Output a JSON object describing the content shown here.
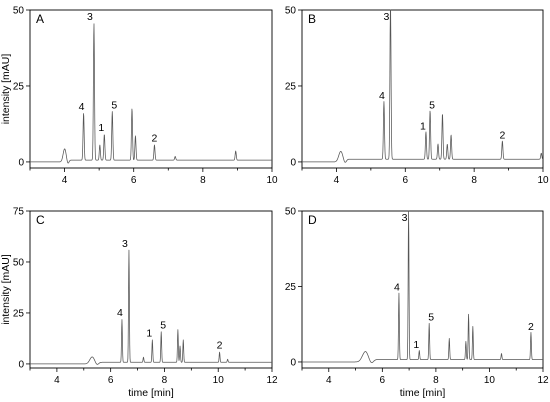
{
  "chart_data": [
    {
      "type": "line",
      "panel_label": "A",
      "xlabel": "",
      "ylabel": "intensity [mAU]",
      "xlim": [
        3,
        10
      ],
      "ylim": [
        -2,
        50
      ],
      "xticks": [
        "4",
        "6",
        "8",
        "10"
      ],
      "yticks": [
        "0",
        "25",
        "50"
      ],
      "peaks": [
        {
          "t": 4.55,
          "h": 15.5,
          "label": "4"
        },
        {
          "t": 4.85,
          "h": 45,
          "label": "3"
        },
        {
          "t": 5.02,
          "h": 5,
          "label": ""
        },
        {
          "t": 5.15,
          "h": 8.5,
          "label": "1"
        },
        {
          "t": 5.38,
          "h": 16,
          "label": "5"
        },
        {
          "t": 5.95,
          "h": 17,
          "label": ""
        },
        {
          "t": 6.05,
          "h": 8,
          "label": ""
        },
        {
          "t": 6.6,
          "h": 5,
          "label": "2"
        },
        {
          "t": 7.2,
          "h": 1.2,
          "label": ""
        },
        {
          "t": 8.95,
          "h": 3,
          "label": ""
        }
      ],
      "solvent_front": {
        "t": 4.0,
        "h": 4,
        "w": 0.06
      },
      "baseline": 0.6
    },
    {
      "type": "line",
      "panel_label": "B",
      "xlabel": "",
      "ylabel": "",
      "xlim": [
        3,
        10
      ],
      "ylim": [
        -2,
        50
      ],
      "xticks": [
        "4",
        "6",
        "8",
        "10"
      ],
      "yticks": [
        "0",
        "25",
        "50"
      ],
      "peaks": [
        {
          "t": 5.38,
          "h": 19,
          "label": "4"
        },
        {
          "t": 5.57,
          "h": 53,
          "label": "3"
        },
        {
          "t": 6.6,
          "h": 9,
          "label": "1"
        },
        {
          "t": 6.72,
          "h": 16,
          "label": "5"
        },
        {
          "t": 6.95,
          "h": 5,
          "label": ""
        },
        {
          "t": 7.08,
          "h": 15,
          "label": ""
        },
        {
          "t": 7.22,
          "h": 5,
          "label": ""
        },
        {
          "t": 7.33,
          "h": 8,
          "label": ""
        },
        {
          "t": 8.82,
          "h": 6,
          "label": "2"
        },
        {
          "t": 9.95,
          "h": 2,
          "label": ""
        }
      ],
      "solvent_front": {
        "t": 4.12,
        "h": 3,
        "w": 0.08
      },
      "baseline": 0.9
    },
    {
      "type": "line",
      "panel_label": "C",
      "xlabel": "time [min]",
      "ylabel": "intensity [mAU]",
      "xlim": [
        3,
        12
      ],
      "ylim": [
        -2,
        75
      ],
      "xticks": [
        "4",
        "6",
        "8",
        "10",
        "12"
      ],
      "yticks": [
        "0",
        "25",
        "50",
        "75"
      ],
      "peaks": [
        {
          "t": 6.42,
          "h": 21,
          "label": "4"
        },
        {
          "t": 6.68,
          "h": 55,
          "label": "3"
        },
        {
          "t": 7.22,
          "h": 2.5,
          "label": ""
        },
        {
          "t": 7.55,
          "h": 11,
          "label": "1"
        },
        {
          "t": 7.88,
          "h": 15,
          "label": "5"
        },
        {
          "t": 8.5,
          "h": 16,
          "label": ""
        },
        {
          "t": 8.58,
          "h": 8,
          "label": ""
        },
        {
          "t": 8.7,
          "h": 11,
          "label": ""
        },
        {
          "t": 10.05,
          "h": 5,
          "label": "2"
        },
        {
          "t": 10.35,
          "h": 1.5,
          "label": ""
        }
      ],
      "solvent_front": {
        "t": 5.3,
        "h": 3,
        "w": 0.12
      },
      "baseline": 0.8
    },
    {
      "type": "line",
      "panel_label": "D",
      "xlabel": "time [min]",
      "ylabel": "",
      "xlim": [
        3,
        12
      ],
      "ylim": [
        -2,
        50
      ],
      "xticks": [
        "4",
        "6",
        "8",
        "10",
        "12"
      ],
      "yticks": [
        "0",
        "25",
        "50"
      ],
      "peaks": [
        {
          "t": 6.62,
          "h": 22,
          "label": "4"
        },
        {
          "t": 6.98,
          "h": 50,
          "label": "3"
        },
        {
          "t": 7.38,
          "h": 3,
          "label": "1"
        },
        {
          "t": 7.75,
          "h": 12,
          "label": "5"
        },
        {
          "t": 8.5,
          "h": 7,
          "label": ""
        },
        {
          "t": 9.12,
          "h": 6,
          "label": ""
        },
        {
          "t": 9.22,
          "h": 15,
          "label": ""
        },
        {
          "t": 9.38,
          "h": 11,
          "label": ""
        },
        {
          "t": 10.45,
          "h": 2,
          "label": ""
        },
        {
          "t": 11.55,
          "h": 9,
          "label": "2"
        }
      ],
      "solvent_front": {
        "t": 5.35,
        "h": 3,
        "w": 0.15
      },
      "baseline": 0.8
    }
  ]
}
